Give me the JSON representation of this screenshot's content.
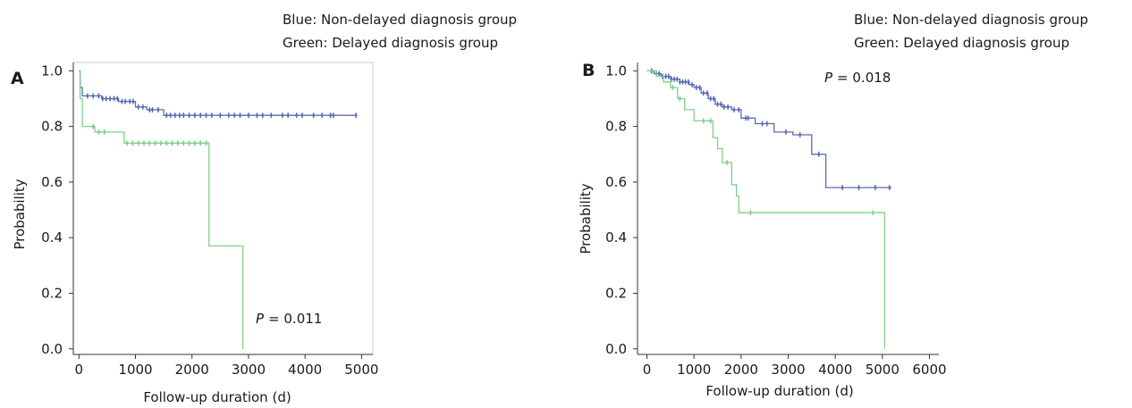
{
  "legend": {
    "blue": "Blue: Non-delayed diagnosis group",
    "green": "Green: Delayed diagnosis group"
  },
  "colors": {
    "blue": "#5b6bb5",
    "green": "#7fcf8a"
  },
  "chart_data": [
    {
      "panel_label": "A",
      "type": "line",
      "step": true,
      "xlabel": "Follow-up duration (d)",
      "ylabel": "Probability",
      "p_label": "P",
      "p_value": "= 0.011",
      "xlim": [
        -100,
        5200
      ],
      "ylim": [
        -0.02,
        1.03
      ],
      "xticks": [
        0,
        1000,
        2000,
        3000,
        4000,
        5000
      ],
      "yticks": [
        0.0,
        0.2,
        0.4,
        0.6,
        0.8,
        1.0
      ],
      "ytick_labels": [
        "0.0",
        "0.2",
        "0.4",
        "0.6",
        "0.8",
        "1.0"
      ],
      "series": [
        {
          "color_key": "blue",
          "points": [
            [
              0,
              1.0
            ],
            [
              20,
              0.94
            ],
            [
              60,
              0.91
            ],
            [
              400,
              0.9
            ],
            [
              700,
              0.89
            ],
            [
              1000,
              0.87
            ],
            [
              1200,
              0.86
            ],
            [
              1500,
              0.84
            ],
            [
              4920,
              0.84
            ]
          ],
          "censor": [
            150,
            250,
            350,
            420,
            480,
            550,
            620,
            680,
            760,
            820,
            900,
            960,
            1050,
            1130,
            1250,
            1300,
            1400,
            1550,
            1620,
            1700,
            1780,
            1850,
            1950,
            2050,
            2150,
            2250,
            2350,
            2500,
            2650,
            2750,
            2850,
            3000,
            3150,
            3250,
            3400,
            3600,
            3700,
            3850,
            3950,
            4150,
            4300,
            4450,
            4500,
            4900
          ]
        },
        {
          "color_key": "green",
          "points": [
            [
              0,
              1.0
            ],
            [
              20,
              0.9
            ],
            [
              60,
              0.8
            ],
            [
              280,
              0.78
            ],
            [
              800,
              0.74
            ],
            [
              2300,
              0.74
            ],
            [
              2300,
              0.37
            ],
            [
              2900,
              0.37
            ],
            [
              2900,
              0.0
            ]
          ],
          "censor": [
            250,
            350,
            450,
            850,
            950,
            1050,
            1150,
            1250,
            1350,
            1450,
            1550,
            1650,
            1750,
            1850,
            1950,
            2050,
            2150,
            2250
          ]
        }
      ]
    },
    {
      "panel_label": "B",
      "type": "line",
      "step": true,
      "xlabel": "Follow-up duration (d)",
      "ylabel": "Probability",
      "p_label": "P",
      "p_value": "= 0.018",
      "xlim": [
        -200,
        6200
      ],
      "ylim": [
        -0.02,
        1.03
      ],
      "xticks": [
        0,
        1000,
        2000,
        3000,
        4000,
        5000,
        6000
      ],
      "yticks": [
        0.0,
        0.2,
        0.4,
        0.6,
        0.8,
        1.0
      ],
      "ytick_labels": [
        "0.0",
        "0.2",
        "0.4",
        "0.6",
        "0.8",
        "1.0"
      ],
      "series": [
        {
          "color_key": "blue",
          "points": [
            [
              0,
              1.0
            ],
            [
              150,
              0.99
            ],
            [
              300,
              0.98
            ],
            [
              500,
              0.97
            ],
            [
              700,
              0.96
            ],
            [
              900,
              0.95
            ],
            [
              1000,
              0.94
            ],
            [
              1150,
              0.92
            ],
            [
              1300,
              0.9
            ],
            [
              1450,
              0.88
            ],
            [
              1600,
              0.87
            ],
            [
              1800,
              0.86
            ],
            [
              2000,
              0.83
            ],
            [
              2300,
              0.81
            ],
            [
              2700,
              0.78
            ],
            [
              3100,
              0.77
            ],
            [
              3300,
              0.77
            ],
            [
              3500,
              0.7
            ],
            [
              3800,
              0.58
            ],
            [
              5200,
              0.58
            ]
          ],
          "censor": [
            100,
            200,
            260,
            330,
            400,
            460,
            520,
            580,
            640,
            700,
            760,
            820,
            880,
            960,
            1050,
            1120,
            1200,
            1280,
            1350,
            1420,
            1500,
            1570,
            1640,
            1720,
            1850,
            1950,
            2100,
            2150,
            2450,
            2550,
            2950,
            3250,
            3650,
            4150,
            4500,
            4850,
            5150
          ]
        },
        {
          "color_key": "green",
          "points": [
            [
              0,
              1.0
            ],
            [
              200,
              0.98
            ],
            [
              350,
              0.96
            ],
            [
              500,
              0.94
            ],
            [
              650,
              0.9
            ],
            [
              800,
              0.86
            ],
            [
              1000,
              0.82
            ],
            [
              1400,
              0.76
            ],
            [
              1500,
              0.72
            ],
            [
              1600,
              0.67
            ],
            [
              1800,
              0.59
            ],
            [
              1900,
              0.55
            ],
            [
              1950,
              0.49
            ],
            [
              5050,
              0.49
            ],
            [
              5050,
              0.0
            ]
          ],
          "censor": [
            550,
            700,
            1200,
            1350,
            1700,
            2200,
            4800
          ]
        }
      ]
    }
  ]
}
